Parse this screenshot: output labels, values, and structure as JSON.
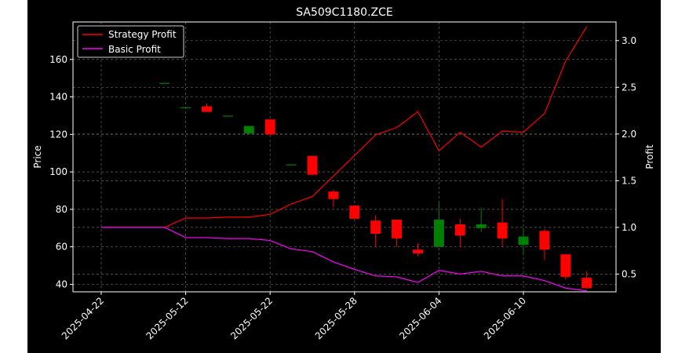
{
  "chart_data": {
    "type": "candlestick",
    "title": "SA509C1180.ZCE",
    "ylabel": "Price",
    "y2label": "Profit",
    "ylim": [
      36,
      180
    ],
    "y2lim": [
      0.31,
      3.2
    ],
    "yticks": [
      40,
      60,
      80,
      100,
      120,
      140,
      160
    ],
    "y2ticks": [
      0.5,
      1.0,
      1.5,
      2.0,
      2.5,
      3.0
    ],
    "y2tick_labels": [
      "0.5",
      "1.0",
      "1.5",
      "2.0",
      "2.5",
      "3.0"
    ],
    "grid": true,
    "legend_position": "top-left",
    "x_tick_labels": [
      "2025-04-22",
      "2025-05-12",
      "2025-05-22",
      "2025-05-28",
      "2025-06-04",
      "2025-06-10"
    ],
    "x_tick_index": [
      0,
      4,
      8,
      12,
      16,
      20
    ],
    "candles": [
      {
        "open": 170,
        "high": 170,
        "low": 170,
        "close": 170
      },
      {
        "open": 170,
        "high": 170,
        "low": 170,
        "close": 170
      },
      {
        "open": 170,
        "high": 170,
        "low": 170,
        "close": 170
      },
      {
        "open": 147.5,
        "high": 147.5,
        "low": 147.5,
        "close": 147.5
      },
      {
        "open": 134.5,
        "high": 134.5,
        "low": 134.5,
        "close": 134.5
      },
      {
        "open": 135,
        "high": 136.5,
        "low": 132,
        "close": 132
      },
      {
        "open": 130,
        "high": 130,
        "low": 130,
        "close": 130
      },
      {
        "open": 120.5,
        "high": 124.5,
        "low": 120.5,
        "close": 124.5
      },
      {
        "open": 128,
        "high": 128,
        "low": 119.5,
        "close": 120
      },
      {
        "open": 104,
        "high": 104,
        "low": 104,
        "close": 104
      },
      {
        "open": 108.5,
        "high": 108.5,
        "low": 98,
        "close": 98.5
      },
      {
        "open": 89.5,
        "high": 90.5,
        "low": 81,
        "close": 85.5
      },
      {
        "open": 82,
        "high": 82,
        "low": 74.5,
        "close": 75
      },
      {
        "open": 74,
        "high": 77,
        "low": 60,
        "close": 67
      },
      {
        "open": 74.5,
        "high": 74.5,
        "low": 60,
        "close": 64.5
      },
      {
        "open": 58.5,
        "high": 62,
        "low": 55,
        "close": 56.5
      },
      {
        "open": 60,
        "high": 83.5,
        "low": 60,
        "close": 74.5
      },
      {
        "open": 72,
        "high": 75,
        "low": 60,
        "close": 66
      },
      {
        "open": 70,
        "high": 81,
        "low": 68,
        "close": 72
      },
      {
        "open": 73,
        "high": 85.5,
        "low": 60,
        "close": 64.5
      },
      {
        "open": 61,
        "high": 70,
        "low": 55.5,
        "close": 65.5
      },
      {
        "open": 68.5,
        "high": 69.5,
        "low": 53,
        "close": 58.5
      },
      {
        "open": 56,
        "high": 56,
        "low": 42.5,
        "close": 44
      },
      {
        "open": 43.5,
        "high": 47,
        "low": 37.5,
        "close": 38
      }
    ],
    "series": [
      {
        "name": "Strategy Profit",
        "color": "#ff0000",
        "axis": "right",
        "values": [
          1.0,
          1.0,
          1.0,
          1.0,
          1.1,
          1.1,
          1.11,
          1.11,
          1.14,
          1.25,
          1.33,
          1.55,
          1.77,
          1.99,
          2.07,
          2.24,
          1.82,
          2.02,
          1.86,
          2.03,
          2.02,
          2.22,
          2.78,
          3.15
        ]
      },
      {
        "name": "Basic Profit",
        "color": "#ff00ff",
        "axis": "right",
        "values": [
          1.0,
          1.0,
          1.0,
          1.0,
          0.89,
          0.89,
          0.88,
          0.88,
          0.86,
          0.77,
          0.74,
          0.63,
          0.55,
          0.48,
          0.47,
          0.41,
          0.54,
          0.5,
          0.53,
          0.48,
          0.48,
          0.43,
          0.35,
          0.32
        ]
      }
    ],
    "up_color": "#008000",
    "down_color": "#ff0000"
  }
}
